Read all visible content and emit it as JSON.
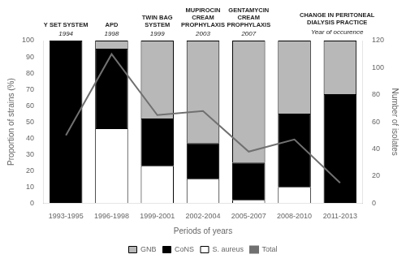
{
  "chart_data": {
    "type": "bar",
    "stacked": true,
    "categories": [
      "1993-1995",
      "1996-1998",
      "1999-2001",
      "2002-2004",
      "2005-2007",
      "2008-2010",
      "2011-2013"
    ],
    "series": [
      {
        "name": "S. aureus",
        "color": "#ffffff",
        "values": [
          0,
          46,
          23,
          15,
          2,
          10,
          0
        ]
      },
      {
        "name": "CoNS",
        "color": "#000000",
        "values": [
          100,
          49,
          29,
          22,
          23,
          45,
          67
        ]
      },
      {
        "name": "GNB",
        "color": "#b8b8b8",
        "values": [
          0,
          5,
          48,
          63,
          75,
          45,
          33
        ]
      },
      {
        "name": "Total",
        "type": "line",
        "axis": "y2",
        "color": "#707070",
        "values": [
          50,
          110,
          65,
          68,
          38,
          47,
          15
        ]
      }
    ],
    "xlabel": "Periods of years",
    "ylabel": "Proportion of strains (%)",
    "y2label": "Number of isolates",
    "ylim": [
      0,
      100
    ],
    "yticks": [
      0,
      10,
      20,
      30,
      40,
      50,
      60,
      70,
      80,
      90,
      100
    ],
    "y2lim": [
      0,
      120
    ],
    "y2ticks": [
      0,
      20,
      40,
      60,
      80,
      100,
      120
    ],
    "annotations": [
      {
        "category": "1993-1995",
        "label": "Y SET SYSTEM",
        "year": "1994"
      },
      {
        "category": "1996-1998",
        "label": "APD",
        "year": "1998"
      },
      {
        "category": "1999-2001",
        "label": "TWIN BAG\nSYSTEM",
        "year": "1999"
      },
      {
        "category": "2002-2004",
        "label": "MUPIROCIN\nCREAM\nPROPHYLAXIS",
        "year": "2003"
      },
      {
        "category": "2005-2007",
        "label": "GENTAMYCIN\nCREAM\nPROPHYLAXIS",
        "year": "2007"
      }
    ],
    "annotations_header": "CHANGE IN PERITONEAL\nDIALYSIS PRACTICE",
    "annotations_subheader": "Year of occurence",
    "grid": false,
    "legend": "bottom"
  }
}
